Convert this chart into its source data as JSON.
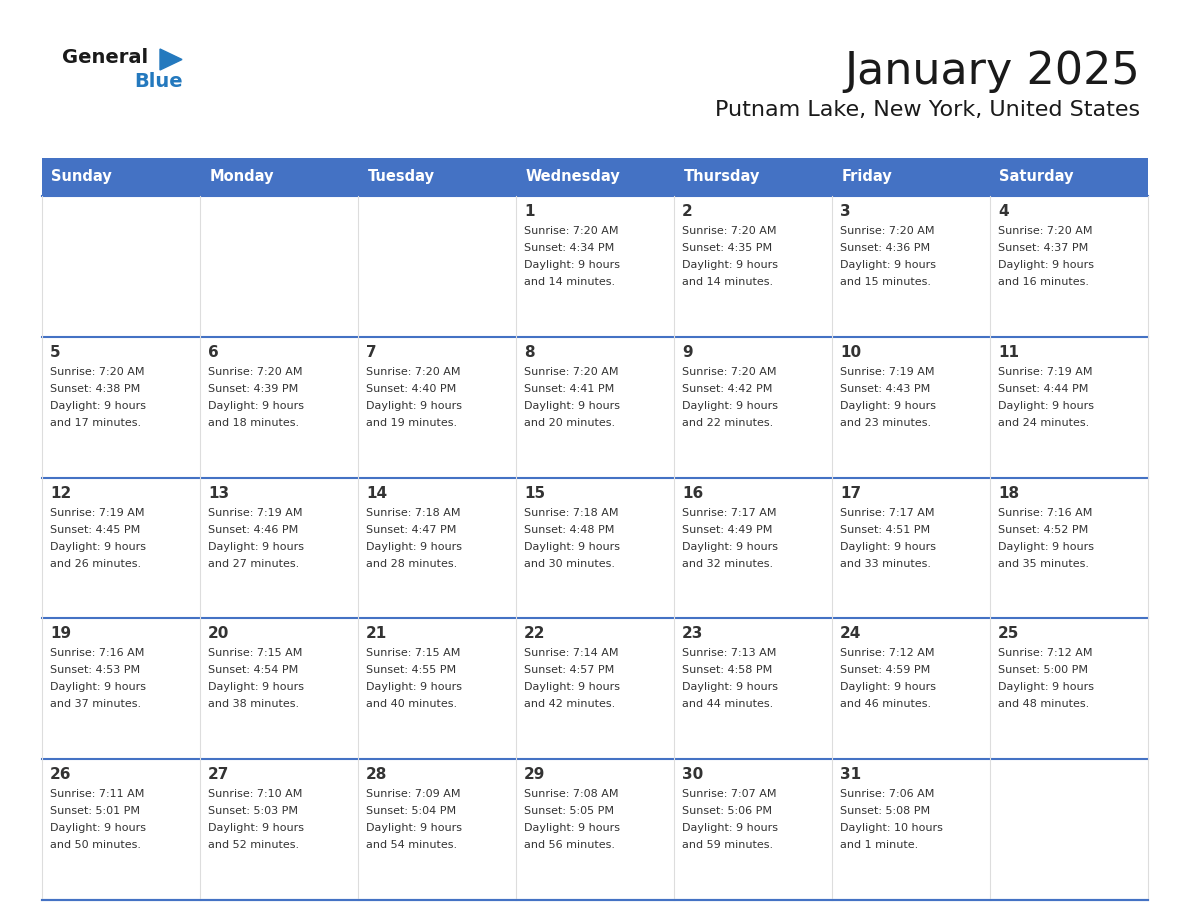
{
  "title": "January 2025",
  "subtitle": "Putnam Lake, New York, United States",
  "days_of_week": [
    "Sunday",
    "Monday",
    "Tuesday",
    "Wednesday",
    "Thursday",
    "Friday",
    "Saturday"
  ],
  "header_bg": "#4472C4",
  "header_text": "#FFFFFF",
  "cell_bg": "#FFFFFF",
  "cell_border_blue": "#4472C4",
  "cell_border_light": "#CCCCCC",
  "text_color": "#333333",
  "day_number_color": "#333333",
  "logo_general_color": "#1a1a1a",
  "logo_blue_color": "#2479BE",
  "calendar_data": [
    [
      null,
      null,
      null,
      {
        "day": 1,
        "sunrise": "7:20 AM",
        "sunset": "4:34 PM",
        "daylight": "9 hours",
        "daylight2": "and 14 minutes."
      },
      {
        "day": 2,
        "sunrise": "7:20 AM",
        "sunset": "4:35 PM",
        "daylight": "9 hours",
        "daylight2": "and 14 minutes."
      },
      {
        "day": 3,
        "sunrise": "7:20 AM",
        "sunset": "4:36 PM",
        "daylight": "9 hours",
        "daylight2": "and 15 minutes."
      },
      {
        "day": 4,
        "sunrise": "7:20 AM",
        "sunset": "4:37 PM",
        "daylight": "9 hours",
        "daylight2": "and 16 minutes."
      }
    ],
    [
      {
        "day": 5,
        "sunrise": "7:20 AM",
        "sunset": "4:38 PM",
        "daylight": "9 hours",
        "daylight2": "and 17 minutes."
      },
      {
        "day": 6,
        "sunrise": "7:20 AM",
        "sunset": "4:39 PM",
        "daylight": "9 hours",
        "daylight2": "and 18 minutes."
      },
      {
        "day": 7,
        "sunrise": "7:20 AM",
        "sunset": "4:40 PM",
        "daylight": "9 hours",
        "daylight2": "and 19 minutes."
      },
      {
        "day": 8,
        "sunrise": "7:20 AM",
        "sunset": "4:41 PM",
        "daylight": "9 hours",
        "daylight2": "and 20 minutes."
      },
      {
        "day": 9,
        "sunrise": "7:20 AM",
        "sunset": "4:42 PM",
        "daylight": "9 hours",
        "daylight2": "and 22 minutes."
      },
      {
        "day": 10,
        "sunrise": "7:19 AM",
        "sunset": "4:43 PM",
        "daylight": "9 hours",
        "daylight2": "and 23 minutes."
      },
      {
        "day": 11,
        "sunrise": "7:19 AM",
        "sunset": "4:44 PM",
        "daylight": "9 hours",
        "daylight2": "and 24 minutes."
      }
    ],
    [
      {
        "day": 12,
        "sunrise": "7:19 AM",
        "sunset": "4:45 PM",
        "daylight": "9 hours",
        "daylight2": "and 26 minutes."
      },
      {
        "day": 13,
        "sunrise": "7:19 AM",
        "sunset": "4:46 PM",
        "daylight": "9 hours",
        "daylight2": "and 27 minutes."
      },
      {
        "day": 14,
        "sunrise": "7:18 AM",
        "sunset": "4:47 PM",
        "daylight": "9 hours",
        "daylight2": "and 28 minutes."
      },
      {
        "day": 15,
        "sunrise": "7:18 AM",
        "sunset": "4:48 PM",
        "daylight": "9 hours",
        "daylight2": "and 30 minutes."
      },
      {
        "day": 16,
        "sunrise": "7:17 AM",
        "sunset": "4:49 PM",
        "daylight": "9 hours",
        "daylight2": "and 32 minutes."
      },
      {
        "day": 17,
        "sunrise": "7:17 AM",
        "sunset": "4:51 PM",
        "daylight": "9 hours",
        "daylight2": "and 33 minutes."
      },
      {
        "day": 18,
        "sunrise": "7:16 AM",
        "sunset": "4:52 PM",
        "daylight": "9 hours",
        "daylight2": "and 35 minutes."
      }
    ],
    [
      {
        "day": 19,
        "sunrise": "7:16 AM",
        "sunset": "4:53 PM",
        "daylight": "9 hours",
        "daylight2": "and 37 minutes."
      },
      {
        "day": 20,
        "sunrise": "7:15 AM",
        "sunset": "4:54 PM",
        "daylight": "9 hours",
        "daylight2": "and 38 minutes."
      },
      {
        "day": 21,
        "sunrise": "7:15 AM",
        "sunset": "4:55 PM",
        "daylight": "9 hours",
        "daylight2": "and 40 minutes."
      },
      {
        "day": 22,
        "sunrise": "7:14 AM",
        "sunset": "4:57 PM",
        "daylight": "9 hours",
        "daylight2": "and 42 minutes."
      },
      {
        "day": 23,
        "sunrise": "7:13 AM",
        "sunset": "4:58 PM",
        "daylight": "9 hours",
        "daylight2": "and 44 minutes."
      },
      {
        "day": 24,
        "sunrise": "7:12 AM",
        "sunset": "4:59 PM",
        "daylight": "9 hours",
        "daylight2": "and 46 minutes."
      },
      {
        "day": 25,
        "sunrise": "7:12 AM",
        "sunset": "5:00 PM",
        "daylight": "9 hours",
        "daylight2": "and 48 minutes."
      }
    ],
    [
      {
        "day": 26,
        "sunrise": "7:11 AM",
        "sunset": "5:01 PM",
        "daylight": "9 hours",
        "daylight2": "and 50 minutes."
      },
      {
        "day": 27,
        "sunrise": "7:10 AM",
        "sunset": "5:03 PM",
        "daylight": "9 hours",
        "daylight2": "and 52 minutes."
      },
      {
        "day": 28,
        "sunrise": "7:09 AM",
        "sunset": "5:04 PM",
        "daylight": "9 hours",
        "daylight2": "and 54 minutes."
      },
      {
        "day": 29,
        "sunrise": "7:08 AM",
        "sunset": "5:05 PM",
        "daylight": "9 hours",
        "daylight2": "and 56 minutes."
      },
      {
        "day": 30,
        "sunrise": "7:07 AM",
        "sunset": "5:06 PM",
        "daylight": "9 hours",
        "daylight2": "and 59 minutes."
      },
      {
        "day": 31,
        "sunrise": "7:06 AM",
        "sunset": "5:08 PM",
        "daylight": "10 hours",
        "daylight2": "and 1 minute."
      },
      null
    ]
  ]
}
